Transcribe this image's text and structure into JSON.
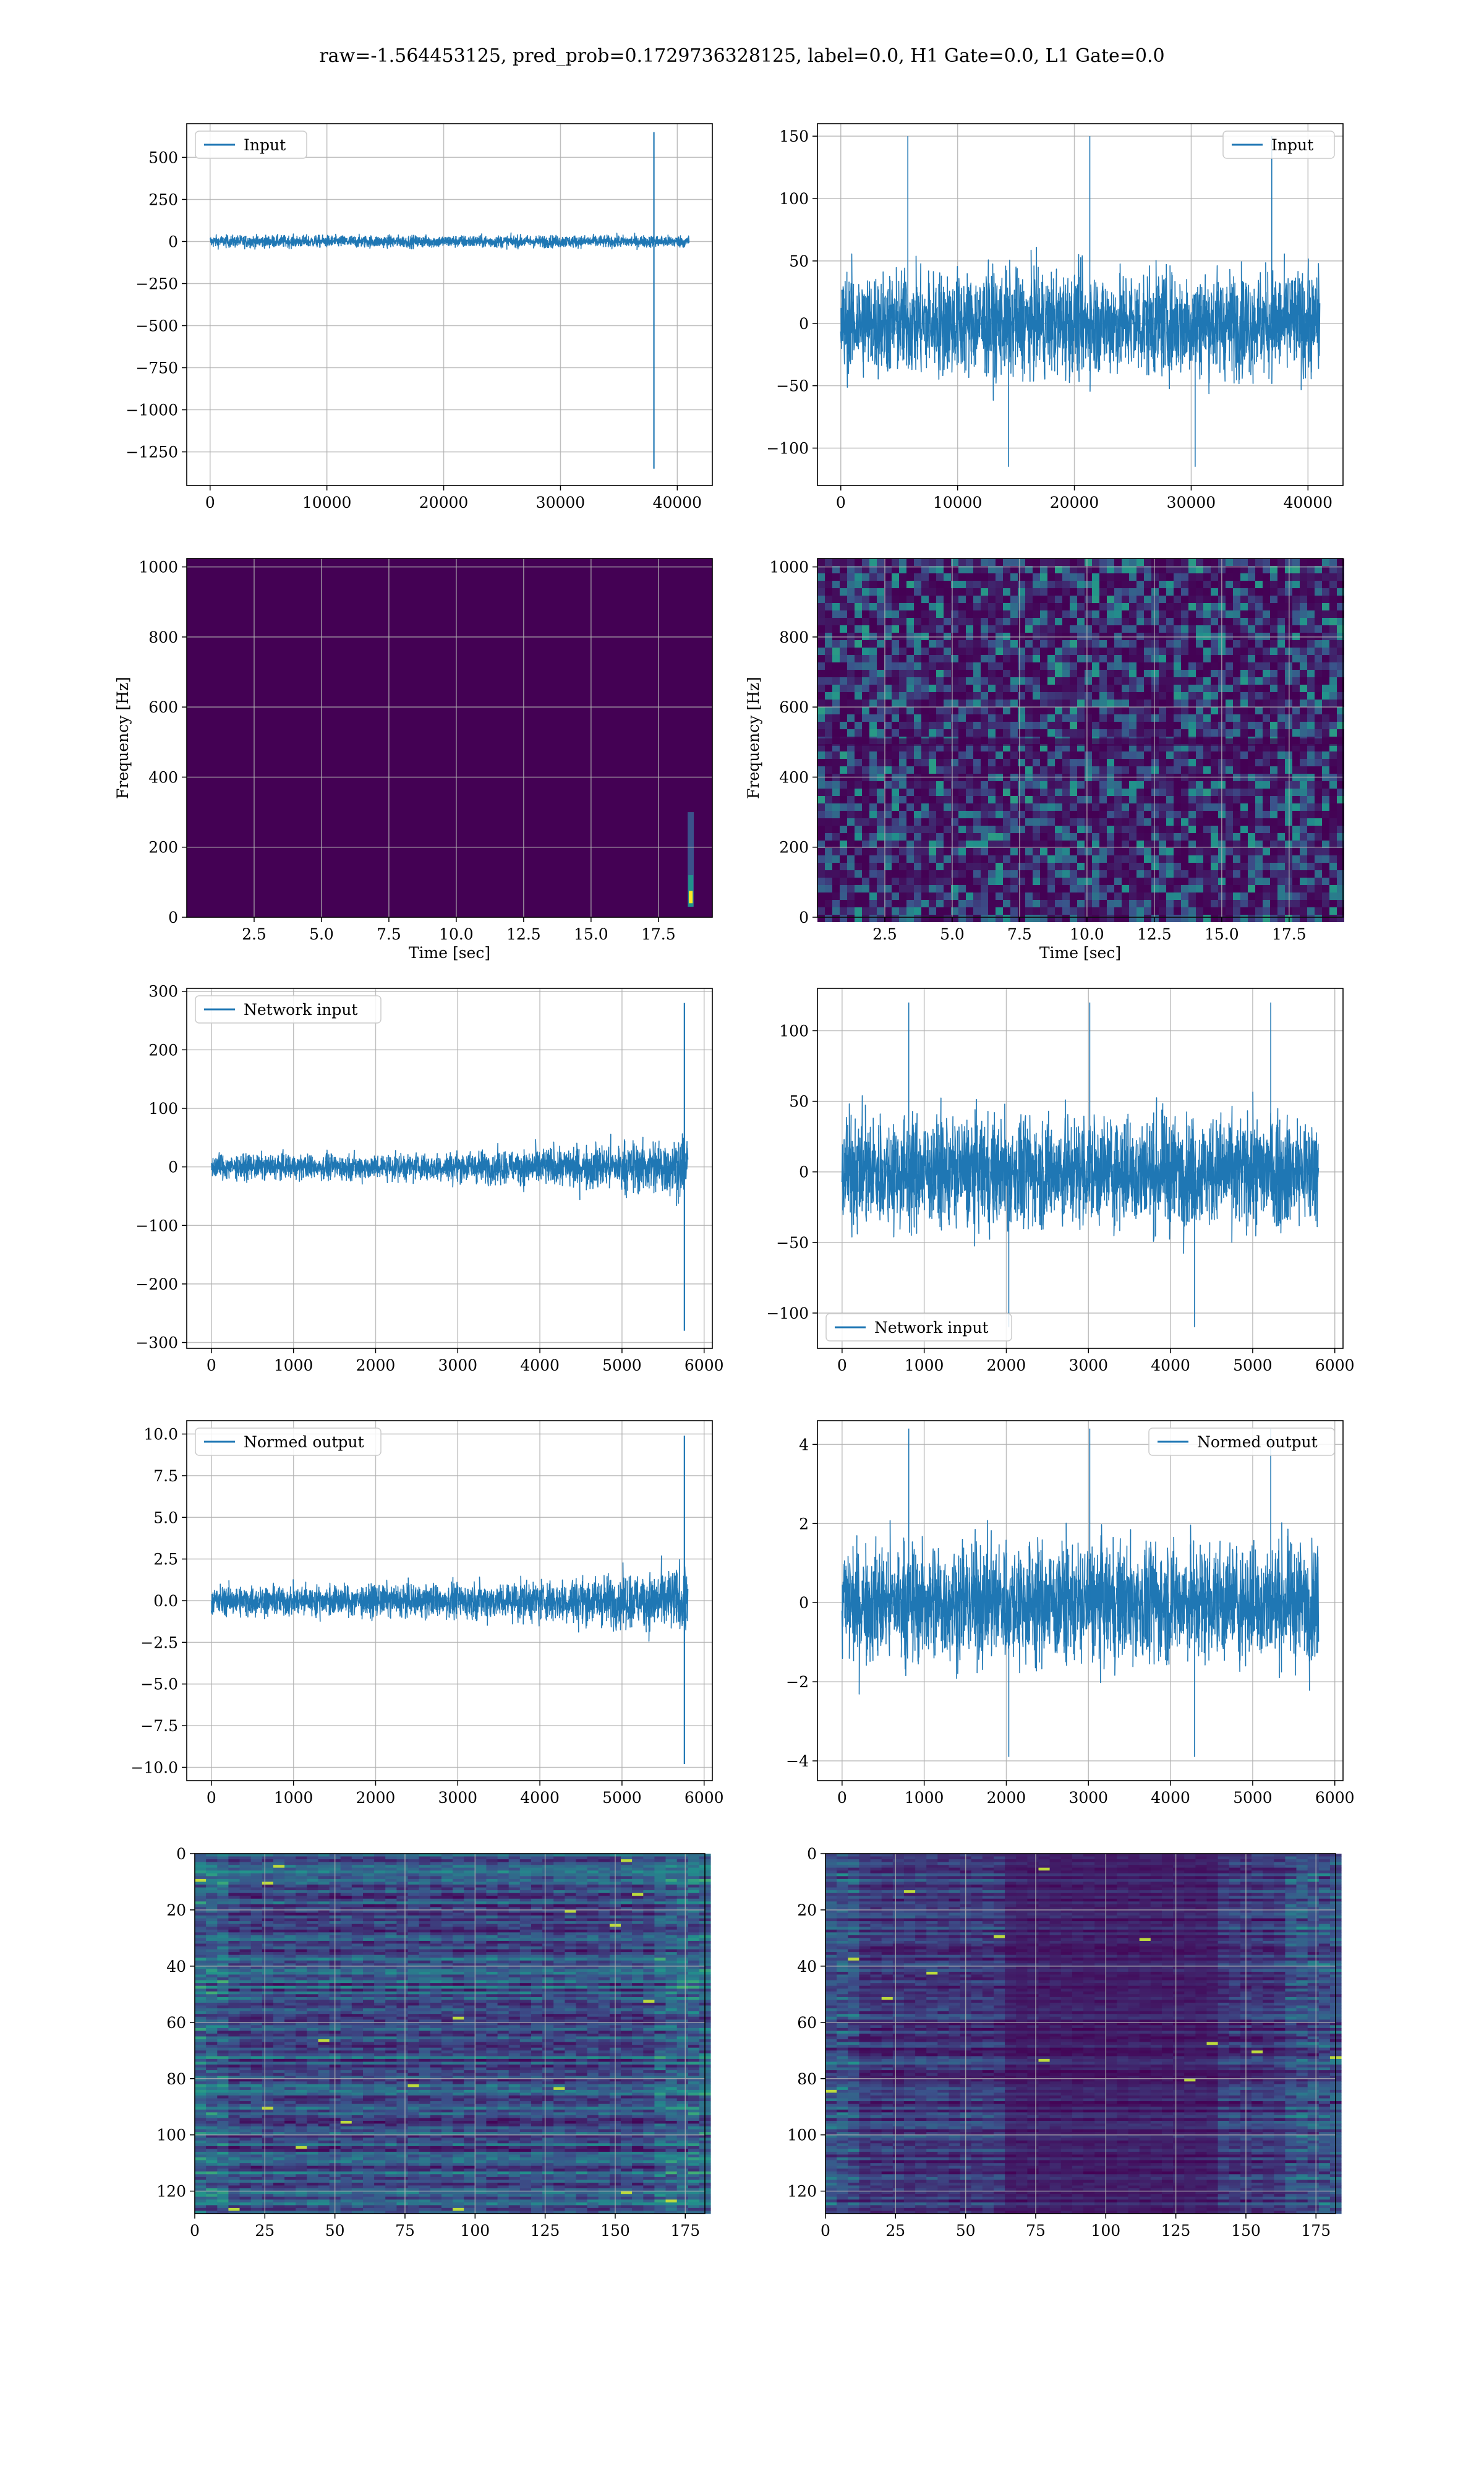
{
  "suptitle": "raw=-1.564453125, pred_prob=0.1729736328125, label=0.0, H1 Gate=0.0, L1 Gate=0.0",
  "colors": {
    "line": "#1f77b4",
    "grid": "#b0b0b0",
    "viridis_dark": "#440154",
    "viridis_mid": "#3b528b",
    "viridis_teal": "#21918c",
    "viridis_yellow": "#fde725"
  },
  "chart_data": [
    {
      "id": "r1c1",
      "type": "line",
      "legend": [
        "Input"
      ],
      "legend_loc": "upper-left",
      "xlim": [
        -2000,
        43000
      ],
      "ylim": [
        -1450,
        700
      ],
      "xticks": [
        0,
        10000,
        20000,
        30000,
        40000
      ],
      "yticks": [
        500,
        250,
        0,
        -250,
        -500,
        -750,
        -1000,
        -1250
      ],
      "x_range": [
        0,
        41000
      ],
      "noise_amplitude": 60,
      "spike": {
        "x": 38000,
        "min": -1350,
        "max": 650
      }
    },
    {
      "id": "r1c2",
      "type": "line",
      "legend": [
        "Input"
      ],
      "legend_loc": "upper-right",
      "xlim": [
        -2000,
        43000
      ],
      "ylim": [
        -130,
        160
      ],
      "xticks": [
        0,
        10000,
        20000,
        30000,
        40000
      ],
      "yticks": [
        150,
        100,
        50,
        0,
        -50,
        -100
      ],
      "x_range": [
        0,
        41000
      ],
      "noise_amplitude": 70,
      "max": 150,
      "min": -115
    },
    {
      "id": "r2c1",
      "type": "heatmap",
      "xlabel": "Time [sec]",
      "ylabel": "Frequency [Hz]",
      "xlim": [
        0,
        19.5
      ],
      "ylim": [
        0,
        1024
      ],
      "xticks": [
        2.5,
        5.0,
        7.5,
        10.0,
        12.5,
        15.0,
        17.5
      ],
      "xtick_labels": [
        "2.5",
        "5.0",
        "7.5",
        "10.0",
        "12.5",
        "15.0",
        "17.5"
      ],
      "yticks": [
        0,
        200,
        400,
        600,
        800,
        1000
      ],
      "background": "uniform dark",
      "hotspot": {
        "time": 18.7,
        "freq_low": 30,
        "freq_high": 300
      }
    },
    {
      "id": "r2c2",
      "type": "heatmap",
      "xlabel": "Time [sec]",
      "ylabel": "Frequency [Hz]",
      "xlim": [
        0,
        19.5
      ],
      "ylim": [
        0,
        1024
      ],
      "xticks": [
        2.5,
        5.0,
        7.5,
        10.0,
        12.5,
        15.0,
        17.5
      ],
      "xtick_labels": [
        "2.5",
        "5.0",
        "7.5",
        "10.0",
        "12.5",
        "15.0",
        "17.5"
      ],
      "yticks": [
        0,
        200,
        400,
        600,
        800,
        1000
      ],
      "background": "speckled noise",
      "dark_band_freq": 500
    },
    {
      "id": "r3c1",
      "type": "line",
      "legend": [
        "Network input"
      ],
      "legend_loc": "upper-left",
      "xlim": [
        -300,
        6100
      ],
      "ylim": [
        -310,
        305
      ],
      "xticks": [
        0,
        1000,
        2000,
        3000,
        4000,
        5000,
        6000
      ],
      "yticks": [
        300,
        200,
        100,
        0,
        -100,
        -200,
        -300
      ],
      "x_range": [
        0,
        5800
      ],
      "noise_start": 35,
      "noise_end": 90,
      "spike": {
        "x": 5760,
        "min": -280,
        "max": 280
      }
    },
    {
      "id": "r3c2",
      "type": "line",
      "legend": [
        "Network input"
      ],
      "legend_loc": "lower-left",
      "xlim": [
        -300,
        6100
      ],
      "ylim": [
        -125,
        130
      ],
      "xticks": [
        0,
        1000,
        2000,
        3000,
        4000,
        5000,
        6000
      ],
      "yticks": [
        100,
        50,
        0,
        -50,
        -100
      ],
      "x_range": [
        0,
        5800
      ],
      "noise_amplitude": 65,
      "max": 120,
      "min": -110
    },
    {
      "id": "r4c1",
      "type": "line",
      "legend": [
        "Normed output"
      ],
      "legend_loc": "upper-left",
      "xlim": [
        -300,
        6100
      ],
      "ylim": [
        -10.8,
        10.8
      ],
      "xticks": [
        0,
        1000,
        2000,
        3000,
        4000,
        5000,
        6000
      ],
      "yticks": [
        10.0,
        7.5,
        5.0,
        2.5,
        0.0,
        -2.5,
        -5.0,
        -7.5,
        -10.0
      ],
      "ytick_labels": [
        "10.0",
        "7.5",
        "5.0",
        "2.5",
        "0.0",
        "−2.5",
        "−5.0",
        "−7.5",
        "−10.0"
      ],
      "x_range": [
        0,
        5800
      ],
      "noise_start": 1.5,
      "noise_end": 3.3,
      "spike": {
        "x": 5760,
        "min": -9.8,
        "max": 9.9
      }
    },
    {
      "id": "r4c2",
      "type": "line",
      "legend": [
        "Normed output"
      ],
      "legend_loc": "upper-right",
      "xlim": [
        -300,
        6100
      ],
      "ylim": [
        -4.5,
        4.6
      ],
      "xticks": [
        0,
        1000,
        2000,
        3000,
        4000,
        5000,
        6000
      ],
      "yticks": [
        4,
        2,
        0,
        -2,
        -4
      ],
      "x_range": [
        0,
        5800
      ],
      "noise_amplitude": 2.5,
      "max": 4.4,
      "min": -3.9
    },
    {
      "id": "r5c1",
      "type": "heatmap",
      "xlim": [
        0,
        182
      ],
      "ylim": [
        128,
        0
      ],
      "xticks": [
        0,
        25,
        50,
        75,
        100,
        125,
        150,
        175
      ],
      "yticks": [
        0,
        20,
        40,
        60,
        80,
        100,
        120
      ],
      "rows": 128,
      "cols": 182,
      "intensity": "high"
    },
    {
      "id": "r5c2",
      "type": "heatmap",
      "xlim": [
        0,
        182
      ],
      "ylim": [
        128,
        0
      ],
      "xticks": [
        0,
        25,
        50,
        75,
        100,
        125,
        150,
        175
      ],
      "yticks": [
        0,
        20,
        40,
        60,
        80,
        100,
        120
      ],
      "rows": 128,
      "cols": 182,
      "intensity": "low"
    }
  ]
}
